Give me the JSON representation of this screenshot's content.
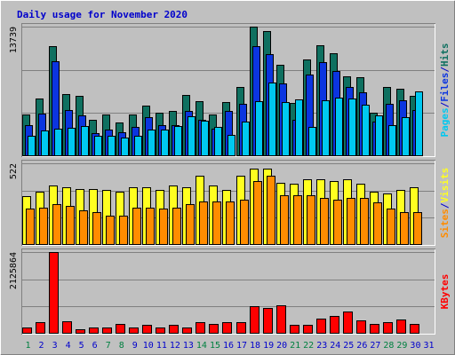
{
  "colors": {
    "background": "#ffffff",
    "frame": "#c0c0c0",
    "panel": "#c0c0c0",
    "grid": "#808080",
    "title": "#0000cc",
    "hits": "#0f7060",
    "files": "#0b35e0",
    "pages": "#00c8f0",
    "visits": "#ffff20",
    "sites": "#ff8c00",
    "kbytes": "#ff0000",
    "weekend_label": "#008040",
    "weekday_label": "#0000cc"
  },
  "chart_data": {
    "type": "bar",
    "title": "Daily usage for November 2020",
    "categories": [
      "1",
      "2",
      "3",
      "4",
      "5",
      "6",
      "7",
      "8",
      "9",
      "10",
      "11",
      "12",
      "13",
      "14",
      "15",
      "16",
      "17",
      "18",
      "19",
      "20",
      "21",
      "22",
      "23",
      "24",
      "25",
      "26",
      "27",
      "28",
      "29",
      "30",
      "31"
    ],
    "weekend_days": [
      "1",
      "7",
      "8",
      "14",
      "15",
      "21",
      "22",
      "28",
      "29"
    ],
    "panels": [
      {
        "name": "usage",
        "ymax": 13739,
        "ymax_label": "13739",
        "gridlines": 3,
        "side_labels": [
          {
            "text": "Hits",
            "color_key": "hits"
          },
          {
            "text": "/",
            "color_key": "title"
          },
          {
            "text": "Files",
            "color_key": "files"
          },
          {
            "text": "/",
            "color_key": "title"
          },
          {
            "text": "Pages",
            "color_key": "pages"
          }
        ],
        "series": [
          {
            "name": "Hits",
            "color_key": "hits",
            "values": [
              4430,
              6160,
              11690,
              6610,
              6400,
              3870,
              4460,
              3590,
              4400,
              5330,
              4650,
              4840,
              6540,
              5860,
              4400,
              5760,
              7300,
              13740,
              13270,
              9710,
              5660,
              10230,
              11760,
              10940,
              8510,
              8400,
              4590,
              7320,
              7170,
              6390,
              null
            ]
          },
          {
            "name": "Files",
            "color_key": "files",
            "values": [
              3320,
              4500,
              10090,
              4880,
              4350,
              2440,
              2820,
              2550,
              3140,
              4100,
              3330,
              3250,
              4810,
              3830,
              2890,
              4780,
              5580,
              11700,
              10780,
              7680,
              3900,
              8700,
              10020,
              9000,
              7300,
              6790,
              3650,
              5590,
              5960,
              4850,
              null
            ]
          },
          {
            "name": "Pages",
            "color_key": "pages",
            "values": [
              2140,
              2730,
              2940,
              3010,
              3200,
              2180,
              2130,
              1970,
              2140,
              2810,
              2830,
              3180,
              4190,
              3810,
              3120,
              2280,
              3640,
              5800,
              7770,
              5770,
              6010,
              3110,
              5930,
              6210,
              6070,
              5490,
              4360,
              3250,
              4100,
              6830,
              null
            ]
          }
        ]
      },
      {
        "name": "visits",
        "ymax": 522,
        "ymax_label": "522",
        "gridlines": 3,
        "side_labels": [
          {
            "text": "Visits",
            "color_key": "visits"
          },
          {
            "text": "/",
            "color_key": "title"
          },
          {
            "text": "Sites",
            "color_key": "sites"
          }
        ],
        "series": [
          {
            "name": "Visits",
            "color_key": "visits",
            "values": [
              310,
              340,
              380,
              370,
              360,
              360,
              350,
              340,
              370,
              370,
              350,
              380,
              370,
              440,
              380,
              350,
              440,
              490,
              490,
              400,
              390,
              420,
              420,
              410,
              420,
              390,
              340,
              330,
              350,
              370,
              null
            ]
          },
          {
            "name": "Sites",
            "color_key": "sites",
            "values": [
              230,
              240,
              260,
              250,
              220,
              210,
              190,
              190,
              240,
              240,
              230,
              240,
              260,
              280,
              280,
              280,
              290,
              410,
              440,
              320,
              320,
              320,
              300,
              290,
              300,
              300,
              270,
              230,
              210,
              210,
              null
            ]
          }
        ]
      },
      {
        "name": "kbytes",
        "ymax": 2125864,
        "ymax_label": "2125864",
        "gridlines": 3,
        "side_labels": [
          {
            "text": "KBytes",
            "color_key": "kbytes"
          }
        ],
        "series": [
          {
            "name": "KBytes",
            "color_key": "kbytes",
            "values": [
              170000,
              290000,
              2125864,
              320000,
              120000,
              170000,
              160000,
              260000,
              170000,
              220000,
              170000,
              230000,
              170000,
              290000,
              260000,
              290000,
              290000,
              720000,
              680000,
              740000,
              240000,
              240000,
              400000,
              460000,
              570000,
              350000,
              260000,
              290000,
              380000,
              260000,
              null
            ]
          }
        ]
      }
    ]
  }
}
